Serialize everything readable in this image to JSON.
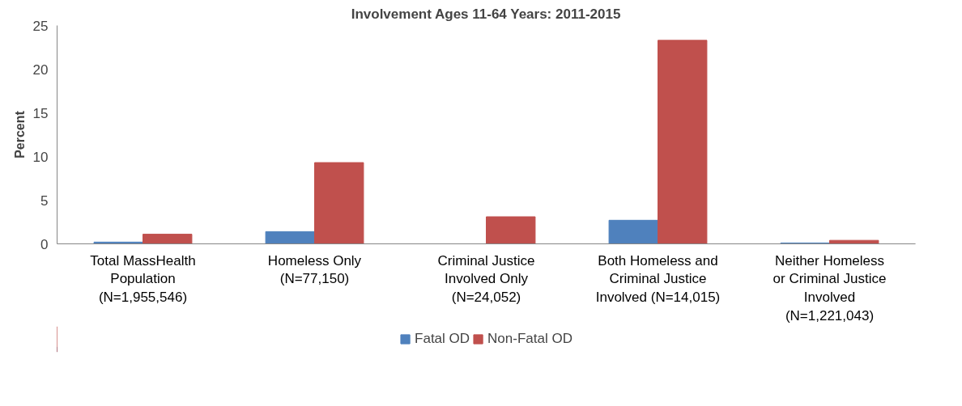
{
  "chart_data": {
    "type": "bar",
    "title": "Involvement Ages 11-64 Years: 2011-2015",
    "ylabel": "Percent",
    "categories": [
      "Total MassHealth\nPopulation\n(N=1,955,546)",
      "Homeless Only\n(N=77,150)",
      "Criminal Justice\nInvolved Only\n(N=24,052)",
      "Both Homeless and\nCriminal Justice\nInvolved (N=14,015)",
      "Neither Homeless\nor Criminal Justice\nInvolved\n(N=1,221,043)"
    ],
    "series": [
      {
        "name": "Fatal OD",
        "color": "#4f81bd",
        "values": [
          0.2,
          1.4,
          0,
          2.7,
          0.1
        ]
      },
      {
        "name": "Non-Fatal OD",
        "color": "#c0504d",
        "values": [
          1.1,
          9.3,
          3.1,
          23.3,
          0.4
        ]
      }
    ],
    "ylim": [
      0,
      25
    ],
    "yticks": [
      0,
      5,
      10,
      15,
      20,
      25
    ],
    "grid": false,
    "legend": "bottom"
  }
}
